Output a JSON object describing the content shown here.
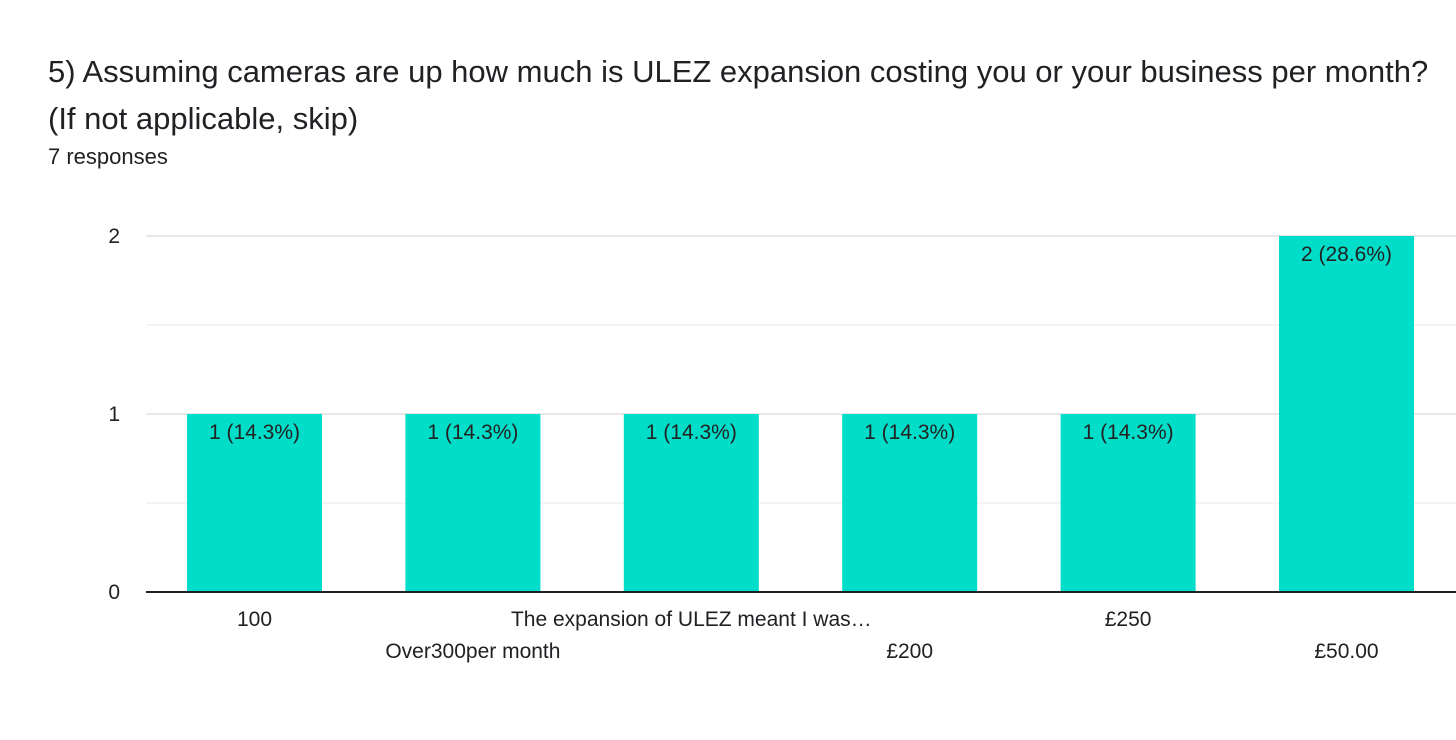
{
  "header": {
    "question": "5) Assuming cameras are up how much is ULEZ expansion costing you or your business per month? (If not applicable, skip)",
    "responses": "7 responses"
  },
  "colors": {
    "bar": "#00DDC8",
    "grid": "#E8E8E8",
    "axis": "#202124"
  },
  "chart_data": {
    "type": "bar",
    "categories": [
      "100",
      "Over300per month",
      "The expansion of ULEZ meant I was…",
      "£200",
      "£250",
      "£50.00"
    ],
    "values": [
      1,
      1,
      1,
      1,
      1,
      2
    ],
    "data_labels": [
      "1 (14.3%)",
      "1 (14.3%)",
      "1 (14.3%)",
      "1 (14.3%)",
      "1 (14.3%)",
      "2 (28.6%)"
    ],
    "ylim": [
      0,
      2
    ],
    "yticks": [
      "0",
      "1",
      "2"
    ],
    "grid": true
  }
}
